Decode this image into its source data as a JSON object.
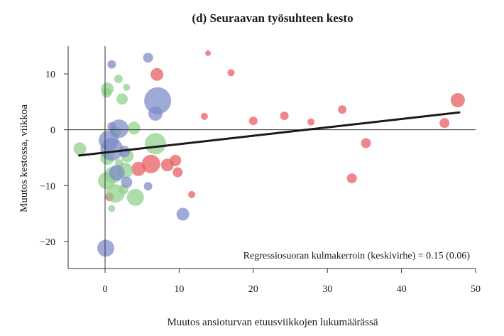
{
  "chart_data": {
    "type": "scatter",
    "title": "(d) Seuraavan työsuhteen kesto",
    "xlabel": "Muutos ansioturvan etuusviikkojen lukumäärässä",
    "ylabel": "Muutos kestossa, viikkoa",
    "xlim": [
      -5,
      50
    ],
    "ylim": [
      -25,
      15
    ],
    "x_ticks": [
      0,
      10,
      20,
      30,
      40,
      50
    ],
    "x_tick_labels": [
      "0",
      "10",
      "20",
      "30",
      "40",
      "50"
    ],
    "y_ticks": [
      10,
      0,
      -10,
      -20
    ],
    "y_tick_labels": [
      "10",
      "0",
      "−10",
      "−20"
    ],
    "reference_lines": {
      "x": 0,
      "y": 0
    },
    "annotation": "Regressiosuoran kulmakerroin (keskivirhe) = 0.15 (0.06)",
    "regression_line": {
      "x": [
        -3.5,
        47.8
      ],
      "y": [
        -4.6,
        3.1
      ],
      "color": "#1a1a1a"
    },
    "series": [
      {
        "color": "#e8595c",
        "points": [
          {
            "x": 13.9,
            "y": 13.7,
            "size": 4
          },
          {
            "x": 17.0,
            "y": 10.2,
            "size": 5
          },
          {
            "x": 7.0,
            "y": 9.9,
            "size": 9
          },
          {
            "x": 47.6,
            "y": 5.3,
            "size": 10
          },
          {
            "x": 32.0,
            "y": 3.6,
            "size": 6
          },
          {
            "x": 13.4,
            "y": 2.4,
            "size": 5
          },
          {
            "x": 24.2,
            "y": 2.5,
            "size": 6
          },
          {
            "x": 20.0,
            "y": 1.6,
            "size": 6
          },
          {
            "x": 27.8,
            "y": 1.4,
            "size": 5
          },
          {
            "x": 45.8,
            "y": 1.2,
            "size": 7
          },
          {
            "x": 35.2,
            "y": -2.4,
            "size": 7
          },
          {
            "x": 9.5,
            "y": -5.5,
            "size": 8
          },
          {
            "x": 8.4,
            "y": -6.3,
            "size": 9
          },
          {
            "x": 6.2,
            "y": -6.1,
            "size": 13
          },
          {
            "x": 4.5,
            "y": -7.0,
            "size": 10
          },
          {
            "x": 9.8,
            "y": -7.6,
            "size": 7
          },
          {
            "x": 33.3,
            "y": -8.7,
            "size": 7
          },
          {
            "x": 11.7,
            "y": -11.6,
            "size": 5
          },
          {
            "x": 0.6,
            "y": -12.0,
            "size": 6
          }
        ]
      },
      {
        "color": "#8fd08a",
        "points": [
          {
            "x": 1.8,
            "y": 9.1,
            "size": 6
          },
          {
            "x": 0.3,
            "y": 7.3,
            "size": 9
          },
          {
            "x": 0.2,
            "y": 6.6,
            "size": 7
          },
          {
            "x": 2.9,
            "y": 7.6,
            "size": 5
          },
          {
            "x": 2.3,
            "y": 5.5,
            "size": 8
          },
          {
            "x": 3.9,
            "y": 0.3,
            "size": 9
          },
          {
            "x": 1.4,
            "y": -0.4,
            "size": 8
          },
          {
            "x": 6.8,
            "y": -2.5,
            "size": 15
          },
          {
            "x": -3.4,
            "y": -3.4,
            "size": 9
          },
          {
            "x": 0.3,
            "y": -5.0,
            "size": 10
          },
          {
            "x": 1.9,
            "y": -6.0,
            "size": 6
          },
          {
            "x": 3.0,
            "y": -4.7,
            "size": 9
          },
          {
            "x": 2.7,
            "y": -7.3,
            "size": 11
          },
          {
            "x": 1.1,
            "y": -8.1,
            "size": 12
          },
          {
            "x": 0.2,
            "y": -9.1,
            "size": 12
          },
          {
            "x": 1.4,
            "y": -11.4,
            "size": 13
          },
          {
            "x": 4.1,
            "y": -12.1,
            "size": 12
          },
          {
            "x": 0.9,
            "y": -14.1,
            "size": 5
          },
          {
            "x": 2.5,
            "y": -10.7,
            "size": 7
          }
        ]
      },
      {
        "color": "#7c89c8",
        "points": [
          {
            "x": 5.8,
            "y": 12.9,
            "size": 7
          },
          {
            "x": 0.9,
            "y": 11.7,
            "size": 6
          },
          {
            "x": 7.1,
            "y": 5.2,
            "size": 19
          },
          {
            "x": 6.8,
            "y": 2.9,
            "size": 10
          },
          {
            "x": 0.9,
            "y": 0.6,
            "size": 6
          },
          {
            "x": 1.9,
            "y": 0.2,
            "size": 13
          },
          {
            "x": 0.5,
            "y": -1.9,
            "size": 14
          },
          {
            "x": 0.9,
            "y": -3.5,
            "size": 16
          },
          {
            "x": 2.6,
            "y": -3.9,
            "size": 8
          },
          {
            "x": 1.6,
            "y": -7.7,
            "size": 11
          },
          {
            "x": 2.9,
            "y": -9.4,
            "size": 8
          },
          {
            "x": 5.8,
            "y": -10.1,
            "size": 6
          },
          {
            "x": 10.5,
            "y": -15.1,
            "size": 9
          },
          {
            "x": 0.1,
            "y": -21.2,
            "size": 12
          }
        ]
      }
    ]
  }
}
